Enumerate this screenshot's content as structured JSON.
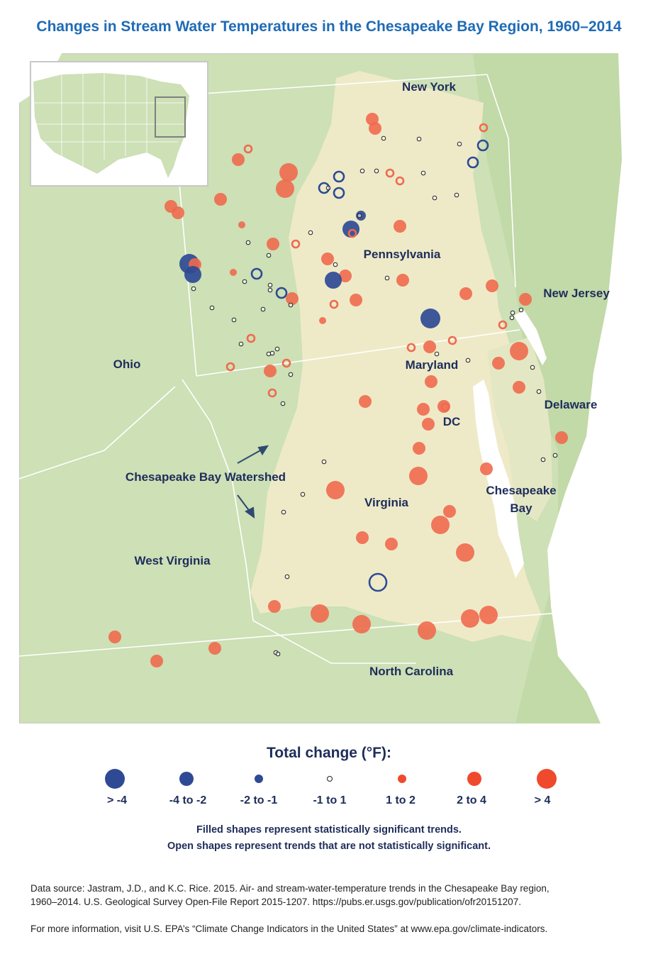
{
  "title": "Changes in Stream Water Temperatures in the Chesapeake Bay Region, 1960–2014",
  "map": {
    "labels": {
      "new_york": "New York",
      "pennsylvania": "Pennsylvania",
      "new_jersey": "New Jersey",
      "ohio": "Ohio",
      "maryland": "Maryland",
      "delaware": "Delaware",
      "dc": "DC",
      "watershed": "Chesapeake Bay Watershed",
      "virginia": "Virginia",
      "chesapeake": "Chesapeake",
      "bay": "Bay",
      "west_virginia": "West Virginia",
      "north_carolina": "North Carolina"
    },
    "colors": {
      "land": "#cde0b6",
      "watershed": "#eeeac8",
      "water": "#ffffff",
      "borders": "#ffffff",
      "cooling": "#2e4a94",
      "warming": "#ef6a4e"
    }
  },
  "legend": {
    "title": "Total change (°F):",
    "items": [
      {
        "label": "> -4"
      },
      {
        "label": "-4 to -2"
      },
      {
        "label": "-2 to -1"
      },
      {
        "label": "-1 to 1"
      },
      {
        "label": "1 to 2"
      },
      {
        "label": "2 to 4"
      },
      {
        "label": "> 4"
      }
    ]
  },
  "notes": {
    "line1": "Filled shapes represent statistically significant trends.",
    "line2": "Open shapes represent trends that are not statistically significant."
  },
  "source": {
    "line1": "Data source: Jastram, J.D., and K.C. Rice. 2015. Air- and stream-water-temperature trends in the Chesapeake Bay region,",
    "line2": "1960–2014. U.S. Geological Survey Open-File Report 2015-1207. https://pubs.er.usgs.gov/publication/ofr20151207.",
    "line3": "For more information, visit U.S. EPA’s “Climate Change Indicators in the United States” at www.epa.gov/climate-indicators."
  }
}
